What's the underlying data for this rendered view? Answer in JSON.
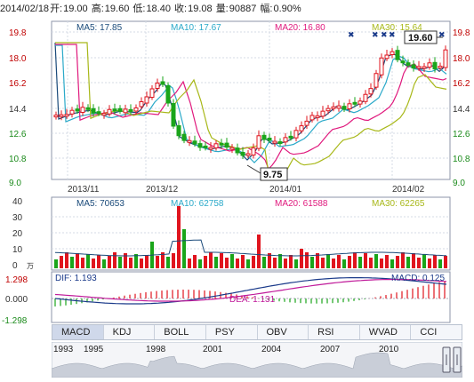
{
  "header": {
    "date": "2014/02/18",
    "open_label": "开:",
    "open": "19.00",
    "high_label": "高:",
    "high": "19.60",
    "low_label": "低:",
    "low": "18.40",
    "close_label": "收:",
    "close": "19.08",
    "volume_label": "量:",
    "volume": "90887",
    "change_label": "幅:",
    "change": "0.90%"
  },
  "price_panel": {
    "y_ticks": [
      "19.8",
      "18.0",
      "16.2",
      "14.4",
      "12.6",
      "10.8",
      "9.0"
    ],
    "x_labels": [
      "2013/11",
      "2013/12",
      "2014/01",
      "2014/02"
    ],
    "legend": [
      {
        "text": "MA5: 17.85",
        "color": "#1a4a7a"
      },
      {
        "text": "MA10: 17.67",
        "color": "#2aa9c9"
      },
      {
        "text": "MA20: 16.80",
        "color": "#e0197d"
      },
      {
        "text": "MA30: 15.64",
        "color": "#a8b819"
      }
    ],
    "max_tag": "19.60",
    "min_tag": "9.75",
    "colors": {
      "up": "#e0141e",
      "down": "#1aa51a",
      "ma5": "#1a4a7a",
      "ma10": "#2aa9c9",
      "ma20": "#e0197d",
      "ma30": "#a8b819"
    }
  },
  "volume_panel": {
    "y_ticks": [
      "40",
      "30",
      "20",
      "10",
      "0"
    ],
    "unit": "万",
    "legend": [
      {
        "text": "MA5: 70653",
        "color": "#1a4a7a"
      },
      {
        "text": "MA10: 62758",
        "color": "#2aa9c9"
      },
      {
        "text": "MA20: 61588",
        "color": "#e0197d"
      },
      {
        "text": "MA30: 62265",
        "color": "#a8b819"
      }
    ]
  },
  "macd_panel": {
    "y_ticks": [
      "1.298",
      "0.000",
      "-1.298"
    ],
    "dif": "DIF: 1.193",
    "dea": "DEA: 1.131",
    "macd": "MACD: 0.125"
  },
  "tabs": [
    "MACD",
    "KDJ",
    "BOLL",
    "PSY",
    "OBV",
    "RSI",
    "WVAD",
    "CCI"
  ],
  "slider": {
    "years": [
      "1993",
      "1995",
      "1998",
      "2001",
      "2004",
      "2007",
      "2010"
    ]
  }
}
